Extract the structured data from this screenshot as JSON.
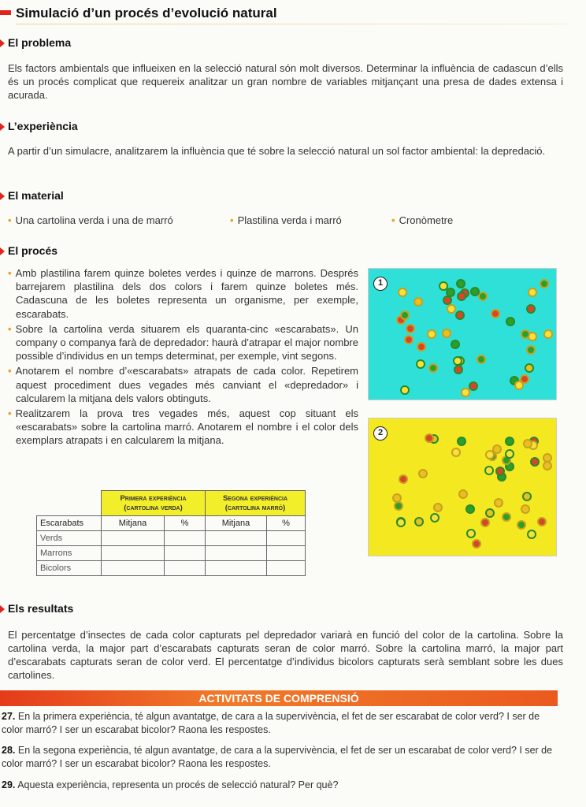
{
  "title": "Simulació d’un procés d’evolució natural",
  "problem": {
    "heading": "El problema",
    "text": "Els factors ambientals que influeixen en la selecció natural són molt diversos. Determinar la influència de cadascun d’ells és un procés complicat que requereix analitzar un gran nombre de variables mitjançant una presa de dades extensa i acurada."
  },
  "experience": {
    "heading": "L’experiència",
    "text": "A partir d’un simulacre, analitzarem la influència que té sobre la selecció natural un sol factor ambiental: la depredació."
  },
  "material": {
    "heading": "El material",
    "items": [
      "Una cartolina verda i una de marró",
      "Plastilina verda i marró",
      "Cronòmetre"
    ]
  },
  "process": {
    "heading": "El procés",
    "steps": [
      "Amb plastilina farem quinze boletes verdes i quinze de marrons. Després barrejarem plastilina dels dos colors i farem quinze boletes més. Cadascuna de les boletes representa un organisme, per exemple, escarabats.",
      "Sobre la cartolina verda situarem els quaranta-cinc «escarabats». Un company o companya farà de depredador: haurà d’atrapar el major nombre possible d’individus en un temps determinat, per exemple, vint segons.",
      "Anotarem el nombre d’«escarabats» atrapats de cada color. Repetirem aquest procediment dues vegades més canviant el «depredador» i calcularem la mitjana dels valors obtinguts.",
      "Realitzarem la prova tres vegades més, aquest cop situant els «escarabats» sobre la cartolina marró. Anotarem el nombre i el color dels exemplars atrapats i en calcularem la mitjana."
    ]
  },
  "table": {
    "group_headers": [
      "Primera experiència (cartolina verda)",
      "Segona experiència (cartolina marró)"
    ],
    "columns": [
      "Escarabats",
      "Mitjana",
      "%",
      "Mitjana",
      "%"
    ],
    "rows": [
      "Verds",
      "Marrons",
      "Bicolors"
    ]
  },
  "photos": [
    {
      "label": "1",
      "background": "#2fe0d8"
    },
    {
      "label": "2",
      "background": "#f4e820"
    }
  ],
  "results": {
    "heading": "Els resultats",
    "text": "El percentatge d’insectes de cada color capturats pel depredador variarà en funció del color de la cartolina. Sobre la cartolina verda, la major part d’escarabats capturats seran de color marró. Sobre la cartolina marró, la major part d’escarabats capturats seran de color verd. El percentatge d’individus bicolors capturats serà semblant sobre les dues cartolines."
  },
  "activities": {
    "heading": "ACTIVITATS DE COMPRENSIÓ",
    "questions": [
      {
        "num": "27.",
        "text": "En la primera experiència, té algun avantatge, de cara a la supervivència, el fet de ser escarabat de color verd? I ser de color marró? I ser un escarabat bicolor? Raona les respostes."
      },
      {
        "num": "28.",
        "text": "En la segona experiència, té algun avantatge, de cara a la supervivència, el fet de ser un escarabat de color verd? I ser de color marró? I ser un escarabat bicolor? Raona les respostes."
      },
      {
        "num": "29.",
        "text": "Aquesta experiència, representa un procés de selecció natural? Per què?"
      }
    ]
  },
  "colors": {
    "accent": "#e2231a",
    "bullet": "#f0a020",
    "table_header": "#f3ee2a"
  }
}
